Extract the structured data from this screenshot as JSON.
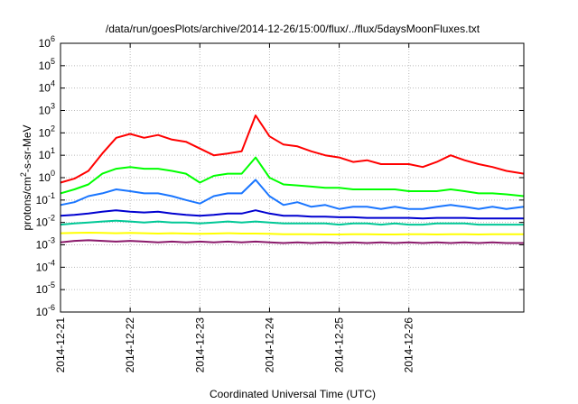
{
  "chart_data": {
    "type": "line",
    "title": "/data/run/goesPlots/archive/2014-12-26/15:00/flux/../flux/5daysMoonFluxes.txt",
    "xlabel": "Coordinated Universal Time (UTC)",
    "ylabel_main": "protons/cm",
    "ylabel_sup": "2",
    "ylabel_rest": "-s-sr-MeV",
    "yscale": "log",
    "ylim": [
      1e-06,
      1000000.0
    ],
    "xlim": [
      0,
      6.65
    ],
    "grid": true,
    "x_tick_labels": [
      "2014-12-21",
      "2014-12-22",
      "2014-12-23",
      "2014-12-24",
      "2014-12-25",
      "2014-12-26"
    ],
    "y_ticks": [
      {
        "base": "10",
        "exp": "-6"
      },
      {
        "base": "10",
        "exp": "-5"
      },
      {
        "base": "10",
        "exp": "-4"
      },
      {
        "base": "10",
        "exp": "-3"
      },
      {
        "base": "10",
        "exp": "-2"
      },
      {
        "base": "10",
        "exp": "-1"
      },
      {
        "base": "10",
        "exp": "0"
      },
      {
        "base": "10",
        "exp": "1"
      },
      {
        "base": "10",
        "exp": "2"
      },
      {
        "base": "10",
        "exp": "3"
      },
      {
        "base": "10",
        "exp": "4"
      },
      {
        "base": "10",
        "exp": "5"
      },
      {
        "base": "10",
        "exp": "6"
      }
    ],
    "series": [
      {
        "color": "#ff0000",
        "x": [
          0,
          0.2,
          0.4,
          0.6,
          0.8,
          1.0,
          1.2,
          1.4,
          1.6,
          1.8,
          2.0,
          2.2,
          2.4,
          2.6,
          2.8,
          3.0,
          3.2,
          3.4,
          3.6,
          3.8,
          4.0,
          4.2,
          4.4,
          4.6,
          4.8,
          5.0,
          5.2,
          5.4,
          5.6,
          5.8,
          6.0,
          6.2,
          6.4,
          6.65
        ],
        "y": [
          0.6,
          0.9,
          2,
          12,
          60,
          90,
          60,
          80,
          50,
          40,
          20,
          10,
          12,
          15,
          600,
          70,
          30,
          25,
          15,
          10,
          8,
          5,
          6,
          4,
          4,
          4,
          3,
          5,
          10,
          6,
          4,
          3,
          2,
          1.5
        ]
      },
      {
        "color": "#00ff00",
        "x": [
          0,
          0.2,
          0.4,
          0.6,
          0.8,
          1.0,
          1.2,
          1.4,
          1.6,
          1.8,
          2.0,
          2.2,
          2.4,
          2.6,
          2.8,
          3.0,
          3.2,
          3.4,
          3.6,
          3.8,
          4.0,
          4.2,
          4.4,
          4.6,
          4.8,
          5.0,
          5.2,
          5.4,
          5.6,
          5.8,
          6.0,
          6.2,
          6.4,
          6.65
        ],
        "y": [
          0.2,
          0.3,
          0.5,
          1.5,
          2.5,
          3,
          2.5,
          2.5,
          2.0,
          1.5,
          0.6,
          1.2,
          1.5,
          1.5,
          8,
          1.0,
          0.5,
          0.45,
          0.4,
          0.35,
          0.35,
          0.3,
          0.3,
          0.3,
          0.3,
          0.25,
          0.25,
          0.25,
          0.3,
          0.25,
          0.2,
          0.2,
          0.18,
          0.15
        ]
      },
      {
        "color": "#1a76ff",
        "x": [
          0,
          0.2,
          0.4,
          0.6,
          0.8,
          1.0,
          1.2,
          1.4,
          1.6,
          1.8,
          2.0,
          2.2,
          2.4,
          2.6,
          2.8,
          3.0,
          3.2,
          3.4,
          3.6,
          3.8,
          4.0,
          4.2,
          4.4,
          4.6,
          4.8,
          5.0,
          5.2,
          5.4,
          5.6,
          5.8,
          6.0,
          6.2,
          6.4,
          6.65
        ],
        "y": [
          0.06,
          0.08,
          0.15,
          0.2,
          0.3,
          0.25,
          0.2,
          0.2,
          0.15,
          0.1,
          0.07,
          0.15,
          0.2,
          0.2,
          0.8,
          0.15,
          0.06,
          0.08,
          0.05,
          0.06,
          0.04,
          0.05,
          0.05,
          0.04,
          0.05,
          0.04,
          0.04,
          0.05,
          0.06,
          0.05,
          0.04,
          0.05,
          0.04,
          0.05
        ]
      },
      {
        "color": "#0000d0",
        "x": [
          0,
          0.2,
          0.4,
          0.6,
          0.8,
          1.0,
          1.2,
          1.4,
          1.6,
          1.8,
          2.0,
          2.2,
          2.4,
          2.6,
          2.8,
          3.0,
          3.2,
          3.4,
          3.6,
          3.8,
          4.0,
          4.2,
          4.4,
          4.6,
          4.8,
          5.0,
          5.2,
          5.4,
          5.6,
          5.8,
          6.0,
          6.2,
          6.4,
          6.65
        ],
        "y": [
          0.02,
          0.022,
          0.025,
          0.03,
          0.035,
          0.03,
          0.028,
          0.03,
          0.025,
          0.022,
          0.02,
          0.022,
          0.025,
          0.025,
          0.035,
          0.025,
          0.02,
          0.02,
          0.018,
          0.018,
          0.017,
          0.017,
          0.016,
          0.016,
          0.016,
          0.016,
          0.015,
          0.016,
          0.016,
          0.016,
          0.015,
          0.015,
          0.015,
          0.015
        ]
      },
      {
        "color": "#00c896",
        "x": [
          0,
          0.2,
          0.4,
          0.6,
          0.8,
          1.0,
          1.2,
          1.4,
          1.6,
          1.8,
          2.0,
          2.2,
          2.4,
          2.6,
          2.8,
          3.0,
          3.2,
          3.4,
          3.6,
          3.8,
          4.0,
          4.2,
          4.4,
          4.6,
          4.8,
          5.0,
          5.2,
          5.4,
          5.6,
          5.8,
          6.0,
          6.2,
          6.4,
          6.65
        ],
        "y": [
          0.008,
          0.009,
          0.01,
          0.011,
          0.012,
          0.011,
          0.01,
          0.011,
          0.01,
          0.01,
          0.009,
          0.01,
          0.011,
          0.01,
          0.011,
          0.01,
          0.009,
          0.009,
          0.009,
          0.009,
          0.008,
          0.009,
          0.009,
          0.008,
          0.009,
          0.008,
          0.008,
          0.009,
          0.009,
          0.009,
          0.008,
          0.008,
          0.008,
          0.008
        ]
      },
      {
        "color": "#ffff00",
        "x": [
          0,
          0.2,
          0.4,
          0.6,
          0.8,
          1.0,
          1.2,
          1.4,
          1.6,
          1.8,
          2.0,
          2.2,
          2.4,
          2.6,
          2.8,
          3.0,
          3.2,
          3.4,
          3.6,
          3.8,
          4.0,
          4.2,
          4.4,
          4.6,
          4.8,
          5.0,
          5.2,
          5.4,
          5.6,
          5.8,
          6.0,
          6.2,
          6.4,
          6.65
        ],
        "y": [
          0.0033,
          0.0034,
          0.0035,
          0.0034,
          0.0033,
          0.0034,
          0.0033,
          0.0032,
          0.0033,
          0.0032,
          0.0031,
          0.0032,
          0.0033,
          0.0032,
          0.0032,
          0.0031,
          0.003,
          0.003,
          0.003,
          0.0029,
          0.0029,
          0.003,
          0.003,
          0.0029,
          0.0029,
          0.003,
          0.003,
          0.0029,
          0.003,
          0.003,
          0.0029,
          0.003,
          0.003,
          0.003
        ]
      },
      {
        "color": "#8b1a6b",
        "x": [
          0,
          0.2,
          0.4,
          0.6,
          0.8,
          1.0,
          1.2,
          1.4,
          1.6,
          1.8,
          2.0,
          2.2,
          2.4,
          2.6,
          2.8,
          3.0,
          3.2,
          3.4,
          3.6,
          3.8,
          4.0,
          4.2,
          4.4,
          4.6,
          4.8,
          5.0,
          5.2,
          5.4,
          5.6,
          5.8,
          6.0,
          6.2,
          6.4,
          6.65
        ],
        "y": [
          0.0013,
          0.0015,
          0.0016,
          0.0015,
          0.0014,
          0.0015,
          0.0014,
          0.0013,
          0.0014,
          0.0013,
          0.0014,
          0.0013,
          0.0014,
          0.0013,
          0.0014,
          0.0013,
          0.0012,
          0.0013,
          0.0012,
          0.0013,
          0.0012,
          0.0013,
          0.0012,
          0.0013,
          0.0012,
          0.0013,
          0.0012,
          0.0013,
          0.0012,
          0.0013,
          0.0012,
          0.0013,
          0.0012,
          0.0012
        ]
      }
    ]
  }
}
